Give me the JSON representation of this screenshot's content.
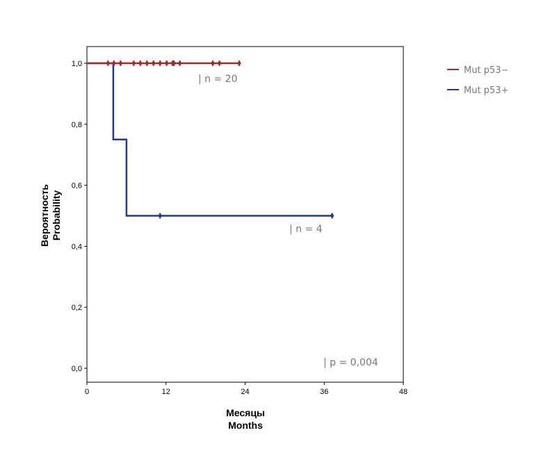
{
  "chart_data": {
    "type": "line",
    "subtype": "kaplan-meier",
    "xlabel": [
      "Месяцы",
      "Months"
    ],
    "ylabel": [
      "Вероятность",
      "Probability"
    ],
    "xlim": [
      0,
      48
    ],
    "ylim": [
      0,
      1
    ],
    "xticks": [
      0,
      12,
      24,
      36,
      48
    ],
    "yticks": [
      0,
      0.2,
      0.4,
      0.6,
      0.8,
      1.0
    ],
    "ytick_labels": [
      "0,0",
      "0,2",
      "0,4",
      "0,6",
      "0,8",
      "1,0"
    ],
    "xtick_labels": [
      "0",
      "12",
      "24",
      "36",
      "48"
    ],
    "series": [
      {
        "name": "Mut p53−",
        "color": "#a52a2a",
        "steps": [
          [
            0,
            1.0
          ],
          [
            23.1,
            1.0
          ]
        ],
        "censored": [
          [
            3.2,
            1
          ],
          [
            4.1,
            1
          ],
          [
            5.1,
            1
          ],
          [
            7.1,
            1
          ],
          [
            8.1,
            1
          ],
          [
            9.1,
            1
          ],
          [
            10.1,
            1
          ],
          [
            11.1,
            1
          ],
          [
            12.1,
            1
          ],
          [
            13.0,
            1
          ],
          [
            13.2,
            1
          ],
          [
            14.1,
            1
          ],
          [
            19.1,
            1
          ],
          [
            20.1,
            1
          ],
          [
            23.1,
            1
          ]
        ],
        "annotation": "n = 20"
      },
      {
        "name": "Mut p53+",
        "color": "#1f3a93",
        "steps": [
          [
            0,
            1.0
          ],
          [
            4,
            1.0
          ],
          [
            4,
            0.75
          ],
          [
            6,
            0.75
          ],
          [
            6,
            0.5
          ],
          [
            37.2,
            0.5
          ]
        ],
        "censored": [
          [
            11.1,
            0.5
          ],
          [
            37.2,
            0.5
          ]
        ],
        "annotation": "n = 4"
      }
    ],
    "p_value": "p = 0,004",
    "legend": "top-right"
  }
}
